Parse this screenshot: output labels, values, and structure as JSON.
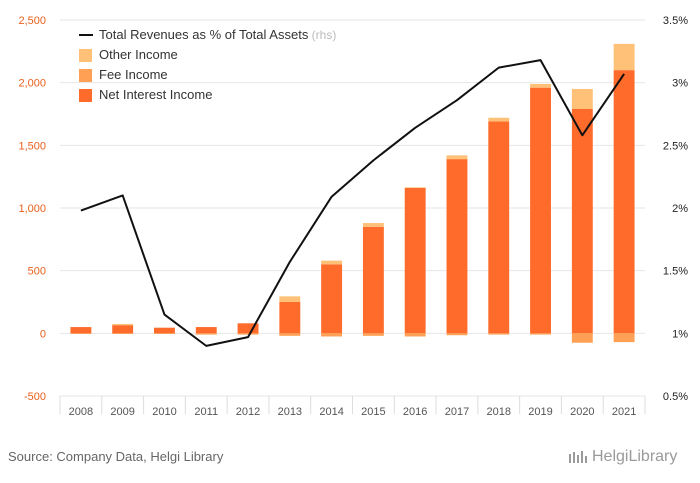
{
  "chart_data": {
    "type": "bar",
    "categories": [
      "2008",
      "2009",
      "2010",
      "2011",
      "2012",
      "2013",
      "2014",
      "2015",
      "2016",
      "2017",
      "2018",
      "2019",
      "2020",
      "2021"
    ],
    "series": [
      {
        "name": "Net Interest Income",
        "type": "bar",
        "axis": "left",
        "color": "#ff6b2b",
        "values": [
          50,
          65,
          45,
          50,
          80,
          250,
          550,
          850,
          1160,
          1390,
          1690,
          1960,
          1790,
          2100
        ]
      },
      {
        "name": "Fee Income",
        "type": "bar",
        "axis": "left",
        "color": "#ffa055",
        "values": [
          -5,
          -5,
          -5,
          -10,
          -10,
          -20,
          -25,
          -20,
          -25,
          -15,
          -10,
          -10,
          -75,
          -70
        ]
      },
      {
        "name": "Other Income",
        "type": "bar",
        "axis": "left",
        "color": "#ffc078",
        "values": [
          0,
          10,
          0,
          0,
          0,
          45,
          30,
          30,
          5,
          30,
          30,
          30,
          160,
          210
        ]
      },
      {
        "name": "Total Revenues as % of Total Assets",
        "type": "line",
        "axis": "right",
        "color": "#111111",
        "values": [
          1.98,
          2.1,
          1.15,
          0.9,
          0.97,
          1.57,
          2.09,
          2.38,
          2.64,
          2.86,
          3.12,
          3.18,
          2.58,
          3.07
        ]
      }
    ],
    "ylim": [
      -500,
      2500
    ],
    "y_ticks": [
      "-500",
      "0",
      "500",
      "1,000",
      "1,500",
      "2,000",
      "2,500"
    ],
    "y2lim": [
      0.5,
      3.5
    ],
    "y2_ticks": [
      "0.5%",
      "1%",
      "1.5%",
      "2%",
      "2.5%",
      "3%",
      "3.5%"
    ],
    "legend": {
      "placement": "top-left",
      "items": [
        {
          "label": "Total Revenues as % of Total Assets",
          "suffix": "(rhs)",
          "kind": "line",
          "color": "#111111"
        },
        {
          "label": "Other Income",
          "kind": "box",
          "color": "#ffc078"
        },
        {
          "label": "Fee Income",
          "kind": "box",
          "color": "#ffa055"
        },
        {
          "label": "Net Interest Income",
          "kind": "box",
          "color": "#ff6b2b"
        }
      ]
    },
    "title": "",
    "xlabel": "",
    "ylabel": "",
    "grid": true
  },
  "footer": {
    "source": "Source: Company Data, Helgi Library",
    "logo_text": "HelgiLibrary"
  }
}
